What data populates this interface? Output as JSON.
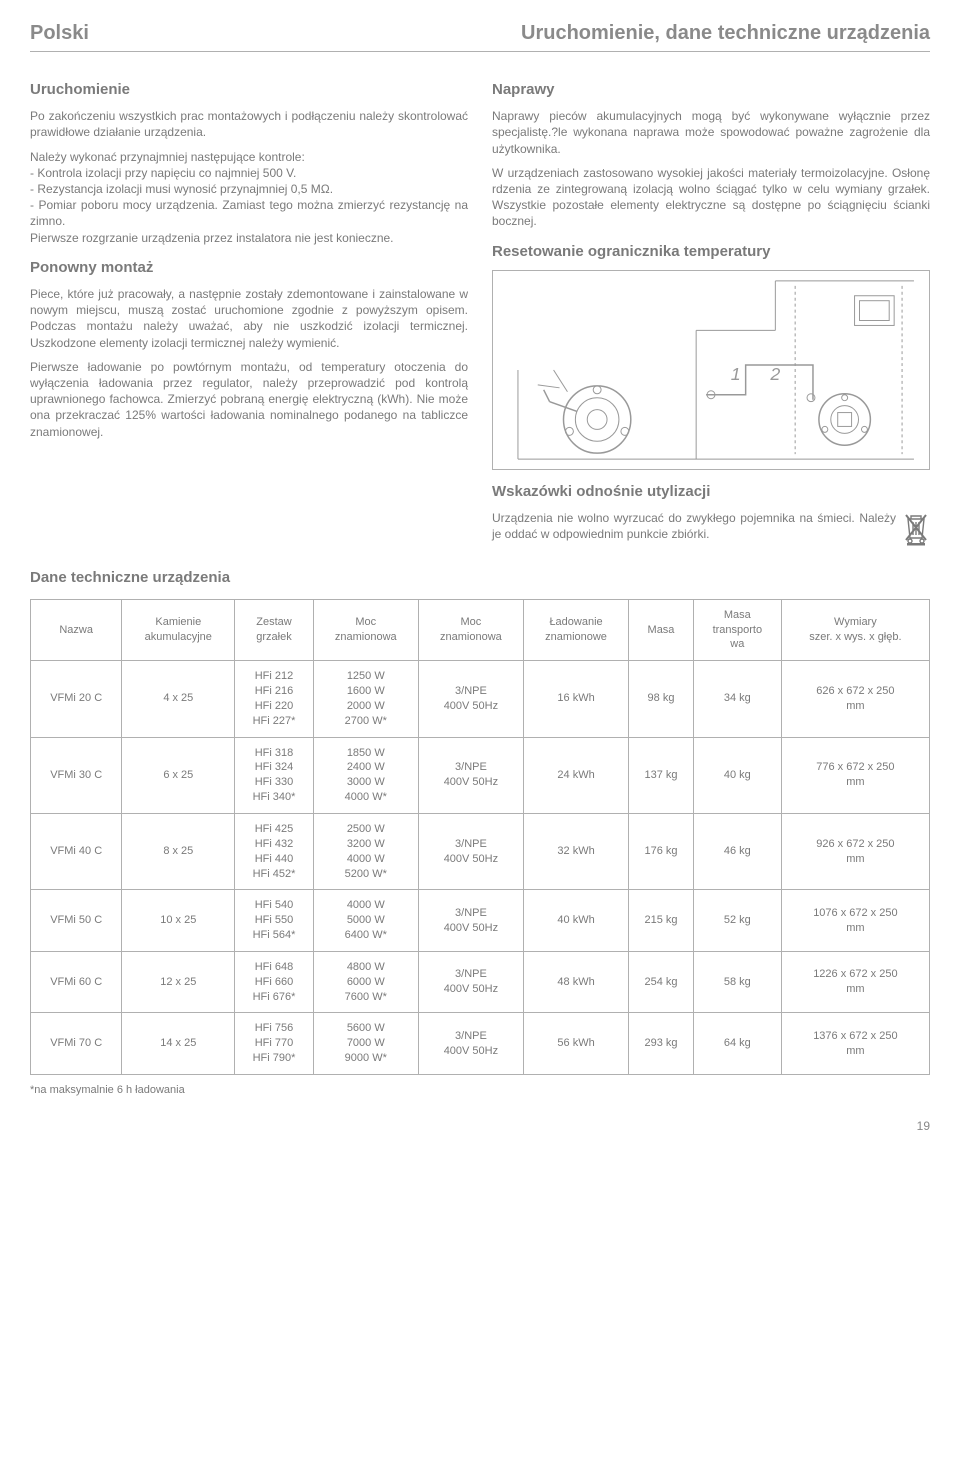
{
  "header": {
    "left": "Polski",
    "right": "Uruchomienie, dane techniczne urządzenia"
  },
  "left_col": {
    "h_uruchomienie": "Uruchomienie",
    "p1": "Po zakończeniu wszystkich prac montażowych i podłączeniu należy skontrolować prawidłowe działanie urządzenia.",
    "p2": "Należy wykonać przynajmniej następujące kontrole:\n- Kontrola izolacji przy napięciu co najmniej 500 V.\n- Rezystancja izolacji musi wynosić przynajmniej 0,5 MΩ.\n- Pomiar poboru mocy urządzenia. Zamiast tego można zmierzyć rezystancję na zimno.\nPierwsze rozgrzanie urządzenia przez instalatora nie jest konieczne.",
    "h_ponowny": "Ponowny montaż",
    "p3": "Piece, które już pracowały, a następnie zostały zdemontowane i zainstalowane w nowym miejscu, muszą zostać uruchomione zgodnie z powyższym opisem. Podczas montażu należy uważać, aby nie uszkodzić izolacji termicznej. Uszkodzone elementy izolacji termicznej należy wymienić.",
    "p4": "Pierwsze ładowanie po powtórnym montażu, od temperatury otoczenia do wyłączenia ładowania przez regulator, należy przeprowadzić pod kontrolą uprawnionego fachowca. Zmierzyć pobraną energię elektryczną (kWh). Nie może ona przekraczać 125% wartości ładowania nominalnego podanego na tabliczce znamionowej."
  },
  "right_col": {
    "h_naprawy": "Naprawy",
    "p1": "Naprawy pieców akumulacyjnych mogą być wykonywane wyłącznie przez specjalistę.?le wykonana naprawa może spowodować poważne zagrożenie dla użytkownika.",
    "p2": "W urządzeniach zastosowano wysokiej jakości materiały termoizolacyjne. Osłonę rdzenia ze zintegrowaną izolacją wolno ściągać tylko w celu wymiany grzałek. Wszystkie pozostałe elementy elektryczne są dostępne po ściągnięciu ścianki bocznej.",
    "h_reset": "Resetowanie ogranicznika temperatury",
    "h_wskazowki": "Wskazówki odnośnie utylizacji",
    "p3": "Urządzenia nie wolno wyrzucać do zwykłego pojemnika na śmieci. Należy je oddać w odpowiednim punkcie zbiórki."
  },
  "table_section_title": "Dane techniczne urządzenia",
  "table": {
    "headers": [
      "Nazwa",
      "Kamienie\nakumulacyjne",
      "Zestaw\ngrzałek",
      "Moc\nznamionowa",
      "Moc\nznamionowa",
      "Ładowanie\nznamionowe",
      "Masa",
      "Masa\ntransporto\nwa",
      "Wymiary\nszer. x wys. x głęb."
    ],
    "rows": [
      [
        "VFMi 20 C",
        "4 x 25",
        "HFi 212\nHFi 216\nHFi 220\nHFi 227*",
        "1250 W\n1600 W\n2000 W\n2700 W*",
        "3/NPE\n400V 50Hz",
        "16 kWh",
        "98 kg",
        "34 kg",
        "626 x 672 x 250\nmm"
      ],
      [
        "VFMi 30 C",
        "6 x 25",
        "HFi 318\nHFi 324\nHFi 330\nHFi 340*",
        "1850 W\n2400 W\n3000 W\n4000 W*",
        "3/NPE\n400V 50Hz",
        "24 kWh",
        "137 kg",
        "40 kg",
        "776 x 672 x 250\nmm"
      ],
      [
        "VFMi 40 C",
        "8 x 25",
        "HFi 425\nHFi 432\nHFi 440\nHFi 452*",
        "2500 W\n3200 W\n4000 W\n5200 W*",
        "3/NPE\n400V 50Hz",
        "32 kWh",
        "176 kg",
        "46 kg",
        "926 x 672 x 250\nmm"
      ],
      [
        "VFMi 50 C",
        "10 x 25",
        "HFi 540\nHFi 550\nHFi 564*",
        "4000 W\n5000 W\n6400 W*",
        "3/NPE\n400V 50Hz",
        "40 kWh",
        "215 kg",
        "52 kg",
        "1076 x 672 x 250\nmm"
      ],
      [
        "VFMi 60 C",
        "12 x 25",
        "HFi 648\nHFi 660\nHFi 676*",
        "4800 W\n6000 W\n7600 W*",
        "3/NPE\n400V 50Hz",
        "48 kWh",
        "254 kg",
        "58 kg",
        "1226 x 672 x 250\nmm"
      ],
      [
        "VFMi 70 C",
        "14 x 25",
        "HFi 756\nHFi 770\nHFi 790*",
        "5600 W\n7000 W\n9000 W*",
        "3/NPE\n400V 50Hz",
        "56 kWh",
        "293 kg",
        "64 kg",
        "1376 x 672 x 250\nmm"
      ]
    ]
  },
  "footnote": "*na maksymalnie 6 h ładowania",
  "page_number": "19",
  "colors": {
    "text": "#7a7a7a",
    "border": "#b0b0b0",
    "bg": "#ffffff"
  }
}
